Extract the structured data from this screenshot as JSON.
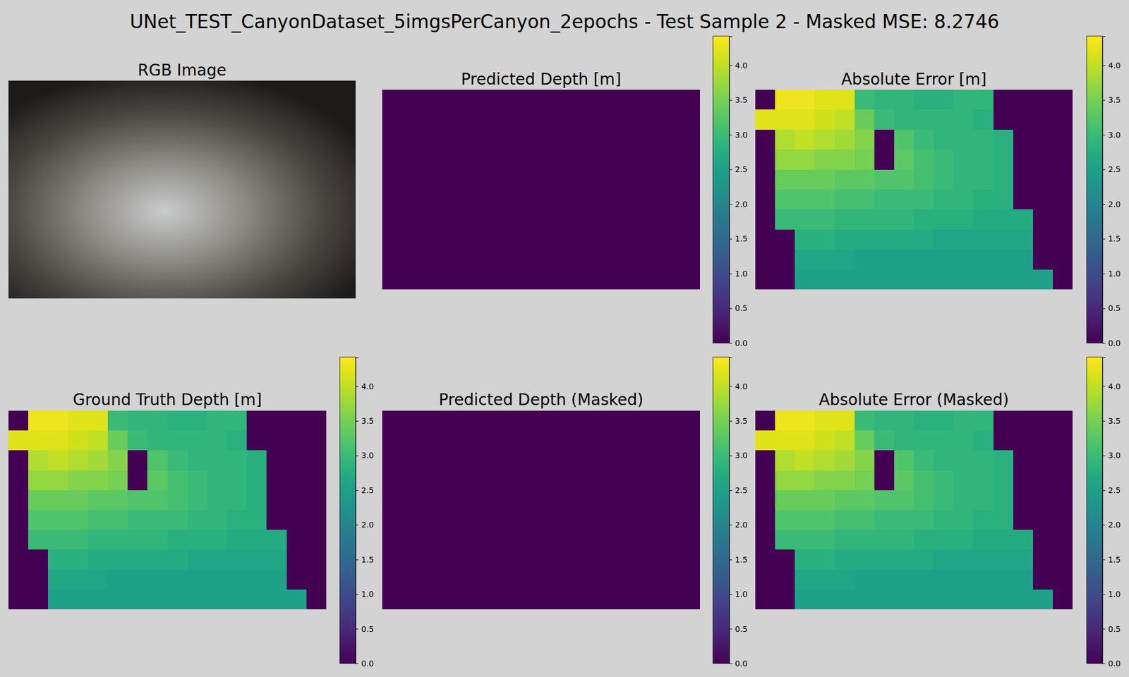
{
  "title": "UNet_TEST_CanyonDataset_5imgsPerCanyon_2epochs - Test Sample 2 - Masked MSE: 8.2746",
  "chart_data": [
    {
      "type": "image",
      "title": "RGB Image"
    },
    {
      "type": "heatmap",
      "title": "Predicted Depth [m]",
      "tick_labels": false,
      "cells": [
        [
          0
        ]
      ],
      "colorbar": {
        "range": [
          0,
          4.42
        ],
        "ticks": [
          {
            "value": 0,
            "label": "0.0"
          },
          {
            "value": 0.5,
            "label": "0.5"
          },
          {
            "value": 1,
            "label": "1.0"
          },
          {
            "value": 1.5,
            "label": "1.5"
          },
          {
            "value": 2,
            "label": "2.0"
          },
          {
            "value": 2.5,
            "label": "2.5"
          },
          {
            "value": 3,
            "label": "3.0"
          },
          {
            "value": 3.5,
            "label": "3.5"
          },
          {
            "value": 4,
            "label": "4.0"
          }
        ]
      }
    },
    {
      "type": "heatmap",
      "title": "Absolute Error [m]",
      "tick_labels": false,
      "cells": [
        [
          0,
          4.3,
          4.3,
          4.2,
          4.2,
          3.0,
          2.9,
          2.9,
          2.8,
          2.8,
          2.9,
          2.9,
          0,
          0,
          0,
          0
        ],
        [
          4.2,
          4.2,
          4.2,
          4.1,
          4.0,
          3.4,
          3.0,
          2.9,
          2.9,
          2.9,
          2.9,
          2.8,
          0,
          0,
          0,
          0
        ],
        [
          0,
          3.9,
          4.0,
          3.9,
          3.8,
          3.6,
          0,
          3.2,
          3.0,
          2.9,
          2.9,
          2.9,
          2.8,
          0,
          0,
          0
        ],
        [
          0,
          3.7,
          3.7,
          3.6,
          3.6,
          3.5,
          0,
          3.3,
          3.1,
          3.0,
          2.9,
          2.9,
          2.8,
          0,
          0,
          0
        ],
        [
          0,
          3.4,
          3.4,
          3.4,
          3.3,
          3.3,
          3.2,
          3.2,
          3.1,
          3.0,
          2.9,
          2.9,
          2.8,
          0,
          0,
          0
        ],
        [
          0,
          3.2,
          3.2,
          3.2,
          3.1,
          3.1,
          3.0,
          3.0,
          3.0,
          2.9,
          2.9,
          2.8,
          2.8,
          0,
          0,
          0
        ],
        [
          0,
          3.0,
          3.0,
          3.0,
          2.9,
          2.9,
          2.9,
          2.9,
          2.8,
          2.8,
          2.8,
          2.7,
          2.7,
          2.7,
          0,
          0
        ],
        [
          0,
          0,
          2.8,
          2.8,
          2.7,
          2.7,
          2.7,
          2.7,
          2.7,
          2.6,
          2.6,
          2.6,
          2.6,
          2.6,
          0,
          0
        ],
        [
          0,
          0,
          2.6,
          2.6,
          2.6,
          2.5,
          2.5,
          2.5,
          2.5,
          2.5,
          2.5,
          2.5,
          2.5,
          2.5,
          0,
          0
        ],
        [
          0,
          0,
          2.5,
          2.5,
          2.5,
          2.5,
          2.5,
          2.5,
          2.5,
          2.5,
          2.5,
          2.5,
          2.5,
          2.5,
          2.5,
          0
        ]
      ],
      "colorbar": {
        "range": [
          0,
          4.42
        ],
        "ticks": [
          {
            "value": 0,
            "label": "0.0"
          },
          {
            "value": 0.5,
            "label": "0.5"
          },
          {
            "value": 1,
            "label": "1.0"
          },
          {
            "value": 1.5,
            "label": "1.5"
          },
          {
            "value": 2,
            "label": "2.0"
          },
          {
            "value": 2.5,
            "label": "2.5"
          },
          {
            "value": 3,
            "label": "3.0"
          },
          {
            "value": 3.5,
            "label": "3.5"
          },
          {
            "value": 4,
            "label": "4.0"
          }
        ]
      }
    },
    {
      "type": "heatmap",
      "title": "Ground Truth Depth [m]",
      "tick_labels": false,
      "cells": [
        [
          0,
          4.3,
          4.3,
          4.2,
          4.2,
          3.0,
          2.9,
          2.9,
          2.8,
          2.8,
          2.9,
          2.9,
          0,
          0,
          0,
          0
        ],
        [
          4.2,
          4.2,
          4.2,
          4.1,
          4.0,
          3.4,
          3.0,
          2.9,
          2.9,
          2.9,
          2.9,
          2.8,
          0,
          0,
          0,
          0
        ],
        [
          0,
          3.9,
          4.0,
          3.9,
          3.8,
          3.6,
          0,
          3.2,
          3.0,
          2.9,
          2.9,
          2.9,
          2.8,
          0,
          0,
          0
        ],
        [
          0,
          3.7,
          3.7,
          3.6,
          3.6,
          3.5,
          0,
          3.3,
          3.1,
          3.0,
          2.9,
          2.9,
          2.8,
          0,
          0,
          0
        ],
        [
          0,
          3.4,
          3.4,
          3.4,
          3.3,
          3.3,
          3.2,
          3.2,
          3.1,
          3.0,
          2.9,
          2.9,
          2.8,
          0,
          0,
          0
        ],
        [
          0,
          3.2,
          3.2,
          3.2,
          3.1,
          3.1,
          3.0,
          3.0,
          3.0,
          2.9,
          2.9,
          2.8,
          2.8,
          0,
          0,
          0
        ],
        [
          0,
          3.0,
          3.0,
          3.0,
          2.9,
          2.9,
          2.9,
          2.9,
          2.8,
          2.8,
          2.8,
          2.7,
          2.7,
          2.7,
          0,
          0
        ],
        [
          0,
          0,
          2.8,
          2.8,
          2.7,
          2.7,
          2.7,
          2.7,
          2.7,
          2.6,
          2.6,
          2.6,
          2.6,
          2.6,
          0,
          0
        ],
        [
          0,
          0,
          2.6,
          2.6,
          2.6,
          2.5,
          2.5,
          2.5,
          2.5,
          2.5,
          2.5,
          2.5,
          2.5,
          2.5,
          0,
          0
        ],
        [
          0,
          0,
          2.5,
          2.5,
          2.5,
          2.5,
          2.5,
          2.5,
          2.5,
          2.5,
          2.5,
          2.5,
          2.5,
          2.5,
          2.5,
          0
        ]
      ],
      "colorbar": {
        "range": [
          0,
          4.42
        ],
        "ticks": [
          {
            "value": 0,
            "label": "0.0"
          },
          {
            "value": 0.5,
            "label": "0.5"
          },
          {
            "value": 1,
            "label": "1.0"
          },
          {
            "value": 1.5,
            "label": "1.5"
          },
          {
            "value": 2,
            "label": "2.0"
          },
          {
            "value": 2.5,
            "label": "2.5"
          },
          {
            "value": 3,
            "label": "3.0"
          },
          {
            "value": 3.5,
            "label": "3.5"
          },
          {
            "value": 4,
            "label": "4.0"
          }
        ]
      }
    },
    {
      "type": "heatmap",
      "title": "Predicted Depth (Masked)",
      "tick_labels": false,
      "cells": [
        [
          0
        ]
      ],
      "colorbar": {
        "range": [
          0,
          4.42
        ],
        "ticks": [
          {
            "value": 0,
            "label": "0.0"
          },
          {
            "value": 0.5,
            "label": "0.5"
          },
          {
            "value": 1,
            "label": "1.0"
          },
          {
            "value": 1.5,
            "label": "1.5"
          },
          {
            "value": 2,
            "label": "2.0"
          },
          {
            "value": 2.5,
            "label": "2.5"
          },
          {
            "value": 3,
            "label": "3.0"
          },
          {
            "value": 3.5,
            "label": "3.5"
          },
          {
            "value": 4,
            "label": "4.0"
          }
        ]
      }
    },
    {
      "type": "heatmap",
      "title": "Absolute Error (Masked)",
      "tick_labels": false,
      "cells": [
        [
          0,
          4.3,
          4.3,
          4.2,
          4.2,
          3.0,
          2.9,
          2.9,
          2.8,
          2.8,
          2.9,
          2.9,
          0,
          0,
          0,
          0
        ],
        [
          4.2,
          4.2,
          4.2,
          4.1,
          4.0,
          3.4,
          3.0,
          2.9,
          2.9,
          2.9,
          2.9,
          2.8,
          0,
          0,
          0,
          0
        ],
        [
          0,
          3.9,
          4.0,
          3.9,
          3.8,
          3.6,
          0,
          3.2,
          3.0,
          2.9,
          2.9,
          2.9,
          2.8,
          0,
          0,
          0
        ],
        [
          0,
          3.7,
          3.7,
          3.6,
          3.6,
          3.5,
          0,
          3.3,
          3.1,
          3.0,
          2.9,
          2.9,
          2.8,
          0,
          0,
          0
        ],
        [
          0,
          3.4,
          3.4,
          3.4,
          3.3,
          3.3,
          3.2,
          3.2,
          3.1,
          3.0,
          2.9,
          2.9,
          2.8,
          0,
          0,
          0
        ],
        [
          0,
          3.2,
          3.2,
          3.2,
          3.1,
          3.1,
          3.0,
          3.0,
          3.0,
          2.9,
          2.9,
          2.8,
          2.8,
          0,
          0,
          0
        ],
        [
          0,
          3.0,
          3.0,
          3.0,
          2.9,
          2.9,
          2.9,
          2.9,
          2.8,
          2.8,
          2.8,
          2.7,
          2.7,
          2.7,
          0,
          0
        ],
        [
          0,
          0,
          2.8,
          2.8,
          2.7,
          2.7,
          2.7,
          2.7,
          2.7,
          2.6,
          2.6,
          2.6,
          2.6,
          2.6,
          0,
          0
        ],
        [
          0,
          0,
          2.6,
          2.6,
          2.6,
          2.5,
          2.5,
          2.5,
          2.5,
          2.5,
          2.5,
          2.5,
          2.5,
          2.5,
          0,
          0
        ],
        [
          0,
          0,
          2.5,
          2.5,
          2.5,
          2.5,
          2.5,
          2.5,
          2.5,
          2.5,
          2.5,
          2.5,
          2.5,
          2.5,
          2.5,
          0
        ]
      ],
      "colorbar": {
        "range": [
          0,
          4.42
        ],
        "ticks": [
          {
            "value": 0,
            "label": "0.0"
          },
          {
            "value": 0.5,
            "label": "0.5"
          },
          {
            "value": 1,
            "label": "1.0"
          },
          {
            "value": 1.5,
            "label": "1.5"
          },
          {
            "value": 2,
            "label": "2.0"
          },
          {
            "value": 2.5,
            "label": "2.5"
          },
          {
            "value": 3,
            "label": "3.0"
          },
          {
            "value": 3.5,
            "label": "3.5"
          },
          {
            "value": 4,
            "label": "4.0"
          }
        ]
      }
    }
  ]
}
